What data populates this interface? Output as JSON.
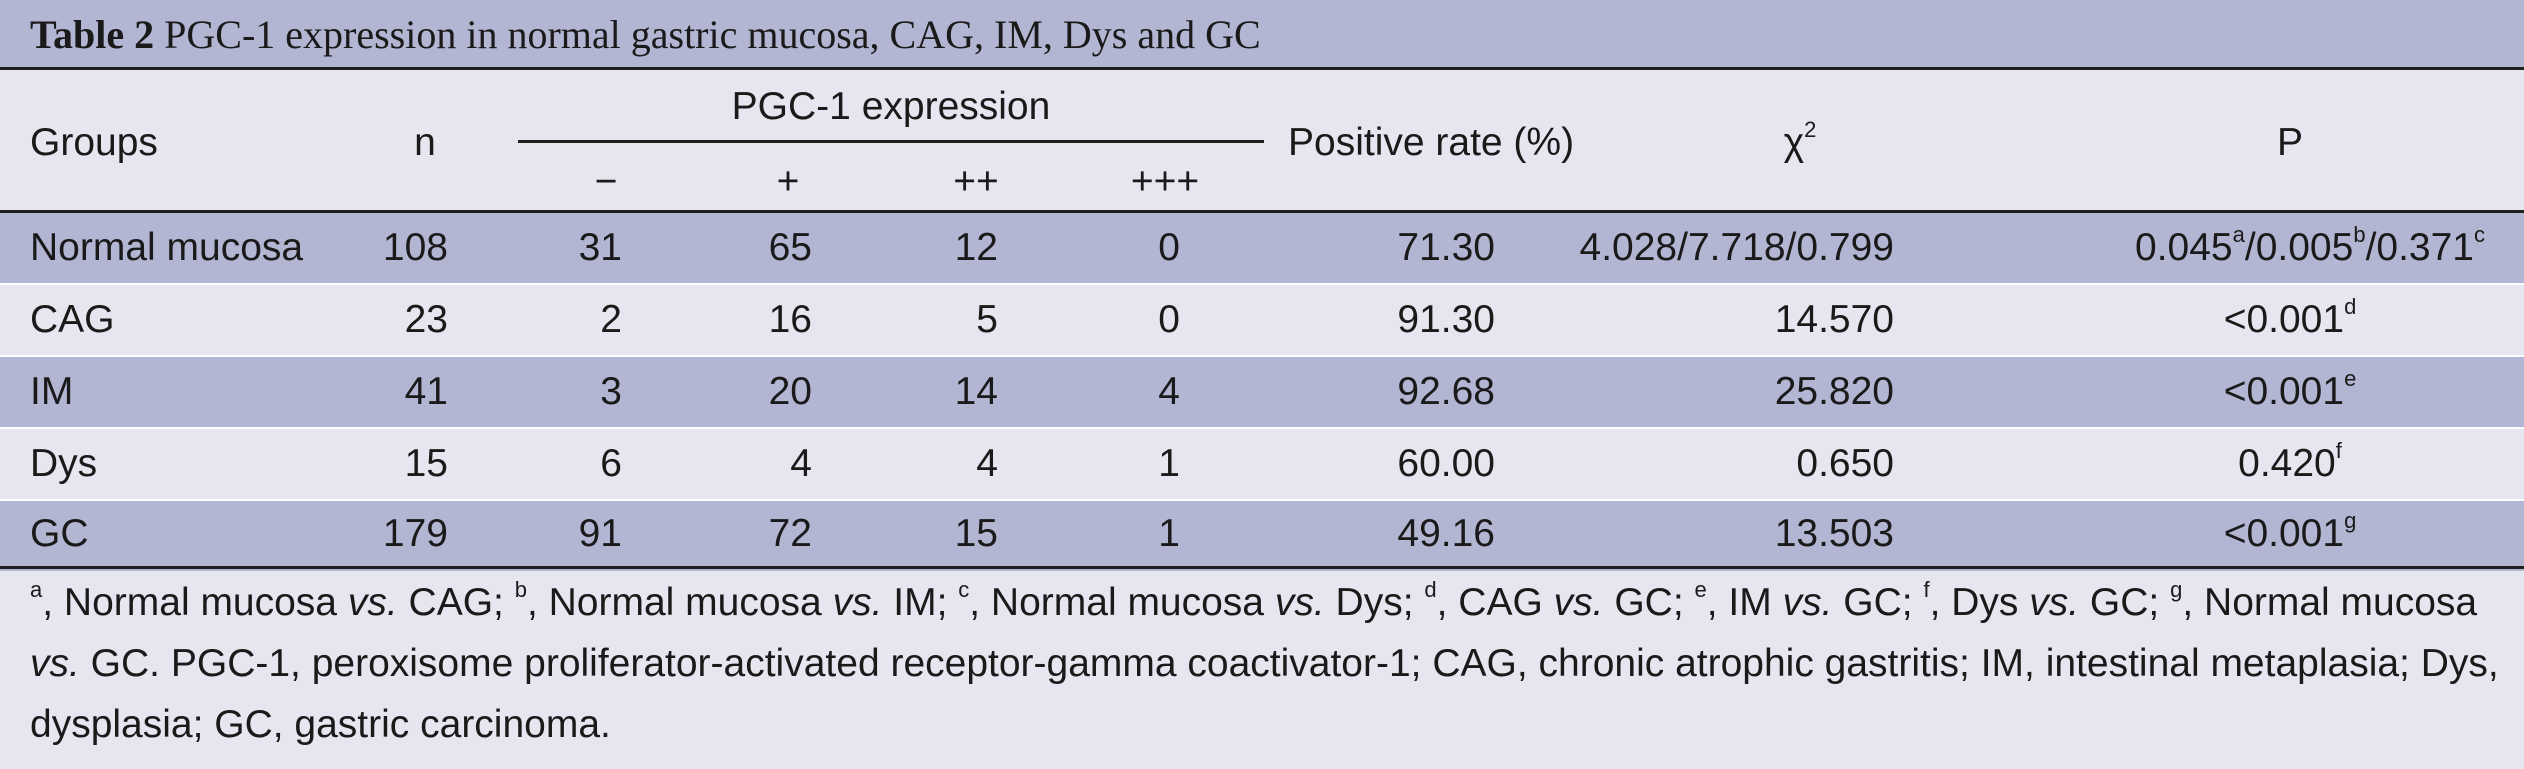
{
  "caption": {
    "label": "Table 2",
    "title": "PGC-1 expression in normal gastric mucosa, CAG, IM, Dys and GC"
  },
  "header": {
    "groups": "Groups",
    "n": "n",
    "expression": "PGC-1 expression",
    "minus": "−",
    "plus": "+",
    "plus2": "++",
    "plus3": "+++",
    "positive_rate": "Positive rate (%)",
    "chi_symbol": "χ",
    "chi_sup": "2",
    "p": "P"
  },
  "rows": [
    {
      "group": "Normal mucosa",
      "n": "108",
      "minus": "31",
      "plus": "65",
      "plus2": "12",
      "plus3": "0",
      "rate": "71.30",
      "chi": "4.028/7.718/0.799",
      "p1": "0.045",
      "s1": "a",
      "p2": "/0.005",
      "s2": "b",
      "p3": "/0.371",
      "s3": "c"
    },
    {
      "group": "CAG",
      "n": "23",
      "minus": "2",
      "plus": "16",
      "plus2": "5",
      "plus3": "0",
      "rate": "91.30",
      "chi": "14.570",
      "p1": "<0.001",
      "s1": "d"
    },
    {
      "group": "IM",
      "n": "41",
      "minus": "3",
      "plus": "20",
      "plus2": "14",
      "plus3": "4",
      "rate": "92.68",
      "chi": "25.820",
      "p1": "<0.001",
      "s1": "e"
    },
    {
      "group": "Dys",
      "n": "15",
      "minus": "6",
      "plus": "4",
      "plus2": "4",
      "plus3": "1",
      "rate": "60.00",
      "chi": "0.650",
      "p1": "0.420",
      "s1": "f"
    },
    {
      "group": "GC",
      "n": "179",
      "minus": "91",
      "plus": "72",
      "plus2": "15",
      "plus3": "1",
      "rate": "49.16",
      "chi": "13.503",
      "p1": "<0.001",
      "s1": "g"
    }
  ],
  "footnote": {
    "sa": "a",
    "t1": ", Normal mucosa ",
    "vs1": "vs.",
    "t2": " CAG; ",
    "sb": "b",
    "t3": ", Normal mucosa ",
    "vs2": "vs.",
    "t4": " IM; ",
    "sc": "c",
    "t5": ", Normal mucosa ",
    "vs3": "vs.",
    "t6": " Dys; ",
    "sd": "d",
    "t7": ", CAG ",
    "vs4": "vs.",
    "t8": " GC; ",
    "se": "e",
    "t9": ", IM ",
    "vs5": "vs.",
    "t10": " GC; ",
    "sf": "f",
    "t11": ", Dys ",
    "vs6": "vs.",
    "t12": " GC; ",
    "sg": "g",
    "t13": ", Normal mucosa ",
    "vs7": "vs.",
    "t14": " GC. PGC-1, peroxisome proliferator-activated receptor-gamma coactivator-1; CAG, chronic atrophic gastritis; IM, intestinal metaplasia; Dys, dysplasia; GC, gastric carcinoma."
  }
}
